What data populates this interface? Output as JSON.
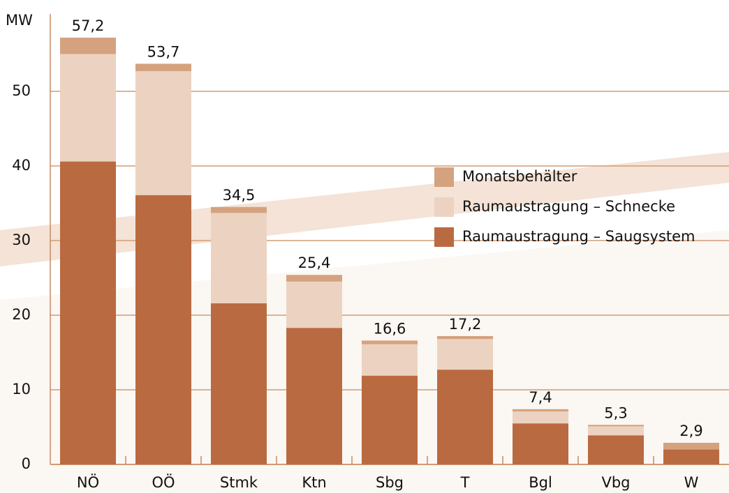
{
  "chart_data": {
    "type": "stacked_bar",
    "y_label": "MW",
    "categories": [
      "NÖ",
      "OÖ",
      "Stmk",
      "Ktn",
      "Sbg",
      "T",
      "Bgl",
      "Vbg",
      "W"
    ],
    "series": [
      {
        "name": "Raumaustragung – Saugsystem",
        "color": "#ba6a40",
        "values": [
          40.6,
          36.1,
          21.6,
          18.3,
          11.9,
          12.7,
          5.5,
          3.9,
          2.0
        ]
      },
      {
        "name": "Raumaustragung – Schnecke",
        "color": "#ecd3c1",
        "values": [
          14.4,
          16.6,
          12.1,
          6.2,
          4.2,
          4.1,
          1.6,
          1.2,
          0
        ]
      },
      {
        "name": "Monatsbehälter",
        "color": "#d5a27f",
        "values": [
          2.2,
          1.0,
          0.8,
          0.9,
          0.5,
          0.4,
          0.3,
          0.2,
          0.9
        ]
      }
    ],
    "totals": [
      57.2,
      53.7,
      34.5,
      25.4,
      16.6,
      17.2,
      7.4,
      5.3,
      2.9
    ],
    "total_labels": [
      "57,2",
      "53,7",
      "34,5",
      "25,4",
      "16,6",
      "17,2",
      "7,4",
      "5,3",
      "2,9"
    ],
    "ylim": [
      0,
      60
    ],
    "yticks": [
      0,
      10,
      20,
      30,
      40,
      50
    ],
    "grid": true
  }
}
